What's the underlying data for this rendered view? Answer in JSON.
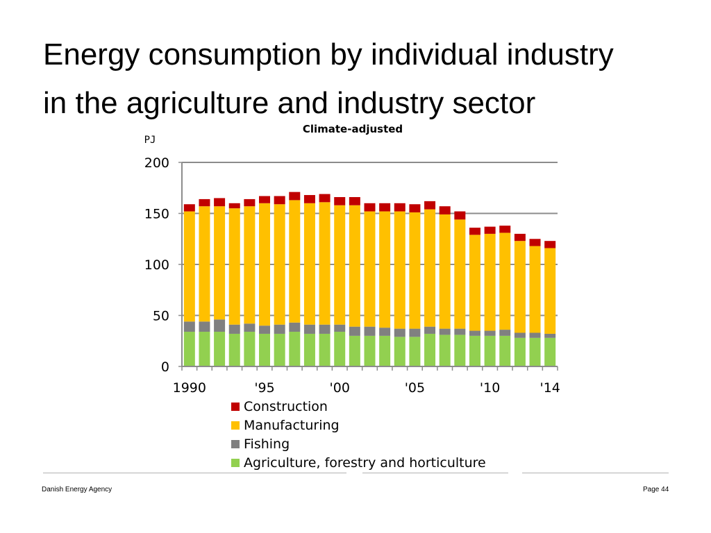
{
  "slide": {
    "title_line1": "Energy consumption by individual industry",
    "title_line2": "in the agriculture and industry sector",
    "footer_left": "Danish Energy Agency",
    "footer_right": "Page 44"
  },
  "chart_data": {
    "type": "bar",
    "stacked": true,
    "title": "Climate-adjusted",
    "ylabel": "PJ",
    "xlabel": "",
    "ylim": [
      0,
      200
    ],
    "yticks": [
      "0",
      "50",
      "100",
      "150",
      "200"
    ],
    "categories": [
      "1990",
      "1991",
      "1992",
      "1993",
      "1994",
      "1995",
      "1996",
      "1997",
      "1998",
      "1999",
      "2000",
      "2001",
      "2002",
      "2003",
      "2004",
      "2005",
      "2006",
      "2007",
      "2008",
      "2009",
      "2010",
      "2011",
      "2012",
      "2013",
      "2014"
    ],
    "xtick_labels": [
      {
        "index": 0,
        "label": "1990"
      },
      {
        "index": 5,
        "label": "'95"
      },
      {
        "index": 10,
        "label": "'00"
      },
      {
        "index": 15,
        "label": "'05"
      },
      {
        "index": 20,
        "label": "'10"
      },
      {
        "index": 24,
        "label": "'14"
      }
    ],
    "series": [
      {
        "name": "Agriculture, forestry and horticulture",
        "color": "#92d050",
        "values": [
          34,
          34,
          34,
          32,
          34,
          32,
          32,
          34,
          32,
          32,
          34,
          30,
          30,
          30,
          29,
          29,
          32,
          31,
          31,
          30,
          30,
          30,
          28,
          28,
          28
        ]
      },
      {
        "name": "Fishing",
        "color": "#808080",
        "values": [
          10,
          10,
          12,
          9,
          8,
          8,
          9,
          9,
          9,
          9,
          7,
          9,
          9,
          8,
          8,
          8,
          7,
          6,
          6,
          5,
          5,
          6,
          5,
          5,
          4
        ]
      },
      {
        "name": "Manufacturing",
        "color": "#ffc000",
        "values": [
          108,
          113,
          111,
          114,
          115,
          120,
          118,
          120,
          119,
          120,
          117,
          119,
          113,
          114,
          115,
          114,
          115,
          112,
          107,
          94,
          95,
          95,
          90,
          85,
          84
        ]
      },
      {
        "name": "Construction",
        "color": "#c00000",
        "values": [
          7,
          7,
          8,
          5,
          7,
          7,
          8,
          8,
          8,
          8,
          8,
          8,
          8,
          8,
          8,
          8,
          8,
          8,
          8,
          7,
          7,
          7,
          7,
          7,
          7
        ]
      }
    ]
  }
}
